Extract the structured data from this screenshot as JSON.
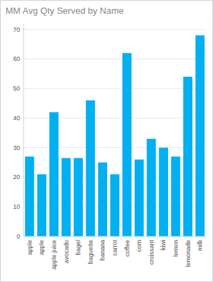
{
  "chart_data": {
    "type": "bar",
    "title": "MM Avg Qty Served by Name",
    "categories": [
      "apple",
      "apple",
      "apple juice",
      "avocado",
      "bagel",
      "baguette",
      "banana",
      "carrot",
      "coffee",
      "corn",
      "croissant",
      "kiwi",
      "lemon",
      "lemonade",
      "milk"
    ],
    "values": [
      27,
      21,
      42,
      26.5,
      26.5,
      46,
      25,
      21,
      62,
      26,
      33,
      30,
      27,
      54,
      68
    ],
    "color": "#00B0F0",
    "ylim": [
      0,
      72
    ],
    "yticks": [
      0,
      10,
      20,
      30,
      40,
      50,
      60,
      70
    ],
    "grid": true
  }
}
